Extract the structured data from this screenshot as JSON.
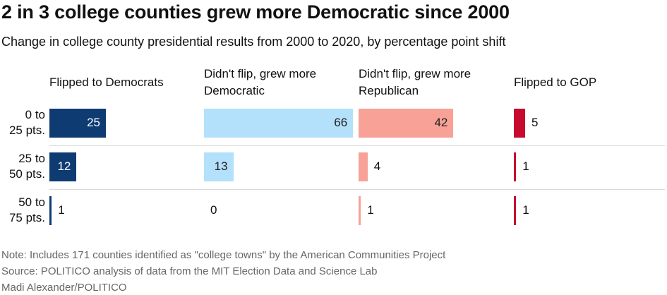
{
  "chart_data": {
    "type": "bar",
    "title": "2 in 3 college counties grew more Democratic since 2000",
    "subtitle": "Change in college county presidential results from 2000 to 2020, by percentage point shift",
    "categories": [
      "0 to 25 pts.",
      "25 to 50 pts.",
      "50 to 75 pts."
    ],
    "category_lines": [
      [
        "0 to",
        "25 pts."
      ],
      [
        "25 to",
        "50 pts."
      ],
      [
        "50 to",
        "75 pts."
      ]
    ],
    "series": [
      {
        "name": "Flipped to Democrats",
        "values": [
          25,
          12,
          1
        ],
        "color": "#0f3b73"
      },
      {
        "name": "Didn't flip, grew more Democratic",
        "values": [
          66,
          13,
          0
        ],
        "color": "#b3e0fa"
      },
      {
        "name": "Didn't flip, grew more Republican",
        "values": [
          42,
          4,
          1
        ],
        "color": "#f7a197"
      },
      {
        "name": "Flipped to GOP",
        "values": [
          5,
          1,
          1
        ],
        "color": "#c70a2f"
      }
    ]
  },
  "footer": {
    "note": "Note: Includes 171 counties identified as \"college towns\" by the American Communities Project",
    "source": "Source: POLITICO analysis of data from the MIT Election Data and Science Lab",
    "credit": "Madi Alexander/POLITICO"
  }
}
